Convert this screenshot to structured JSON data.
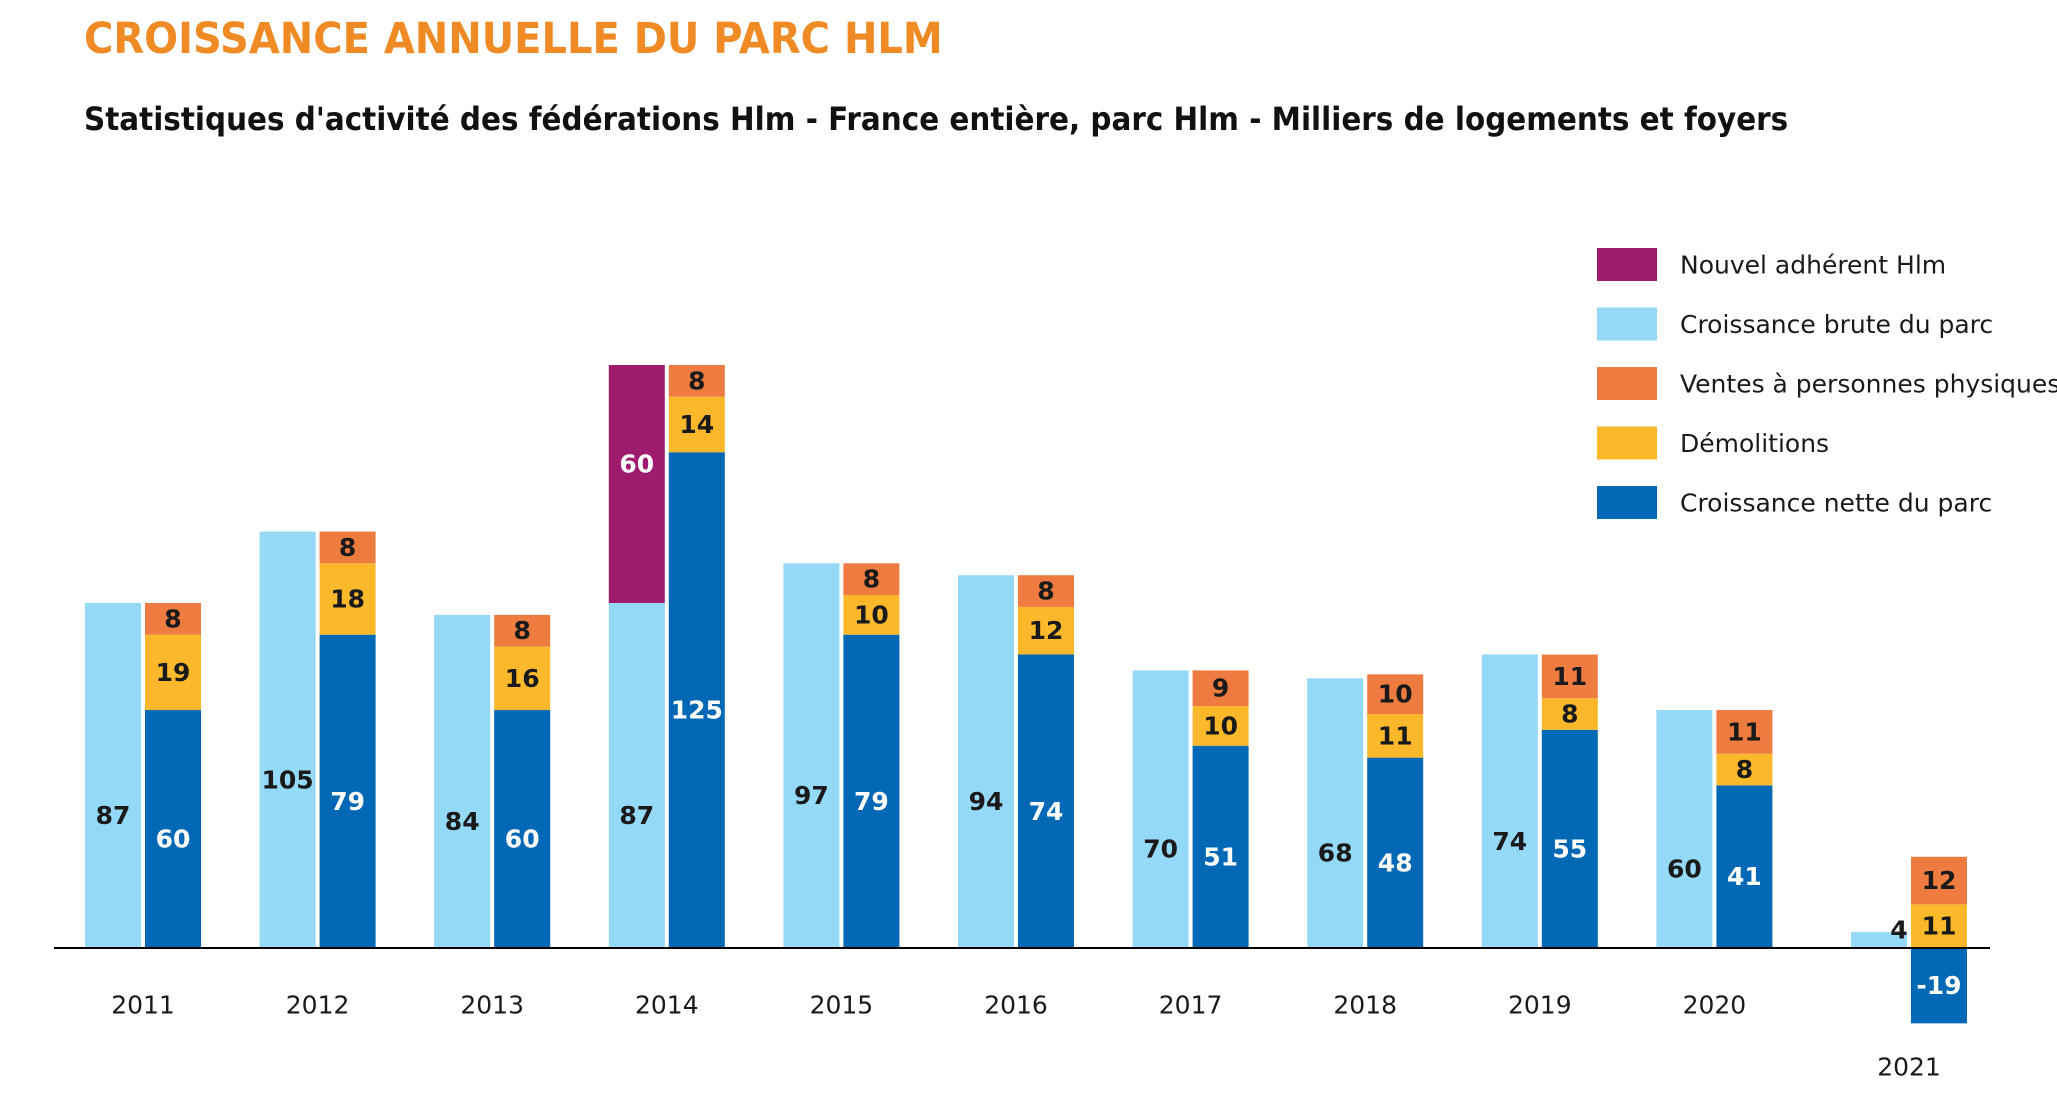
{
  "chart_data": {
    "type": "bar",
    "title": "CROISSANCE ANNUELLE DU PARC HLM",
    "subtitle": "Statistiques d'activité des fédérations Hlm - France entière, parc Hlm - Milliers de logements et foyers",
    "categories": [
      "2011",
      "2012",
      "2013",
      "2014",
      "2015",
      "2016",
      "2017",
      "2018",
      "2019",
      "2020",
      "2021"
    ],
    "legend_position": "top-right",
    "grid": false,
    "series": [
      {
        "name": "Nouvel adhérent Hlm",
        "color": "#9E1B6E",
        "values": [
          null,
          null,
          null,
          60,
          null,
          null,
          null,
          null,
          null,
          null,
          null
        ]
      },
      {
        "name": "Croissance brute du parc",
        "color": "#94D9F7",
        "values": [
          87,
          105,
          84,
          87,
          97,
          94,
          70,
          68,
          74,
          60,
          4
        ]
      },
      {
        "name": "Ventes à personnes physiques",
        "color": "#EE7B40",
        "values": [
          8,
          8,
          8,
          8,
          8,
          8,
          9,
          10,
          11,
          11,
          12
        ]
      },
      {
        "name": "Démolitions",
        "color": "#FBB82B",
        "values": [
          19,
          18,
          16,
          14,
          10,
          12,
          10,
          11,
          8,
          8,
          11
        ]
      },
      {
        "name": "Croissance nette du parc",
        "color": "#0068B4",
        "values": [
          60,
          79,
          60,
          125,
          79,
          74,
          51,
          48,
          55,
          41,
          -19
        ]
      }
    ]
  }
}
